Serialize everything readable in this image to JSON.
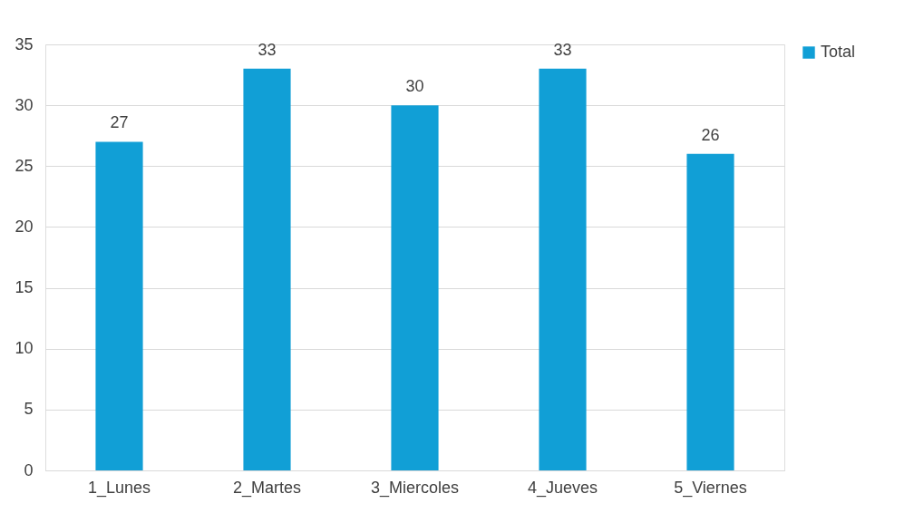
{
  "chart_data": {
    "type": "bar",
    "categories": [
      "1_Lunes",
      "2_Martes",
      "3_Miercoles",
      "4_Jueves",
      "5_Viernes"
    ],
    "series": [
      {
        "name": "Total",
        "color": "#119fd6",
        "values": [
          27,
          33,
          30,
          33,
          26
        ]
      }
    ],
    "ylim": [
      0,
      35
    ],
    "yticks": [
      0,
      5,
      10,
      15,
      20,
      25,
      30,
      35
    ],
    "grid": "y",
    "legend": "right",
    "data_labels": true
  }
}
